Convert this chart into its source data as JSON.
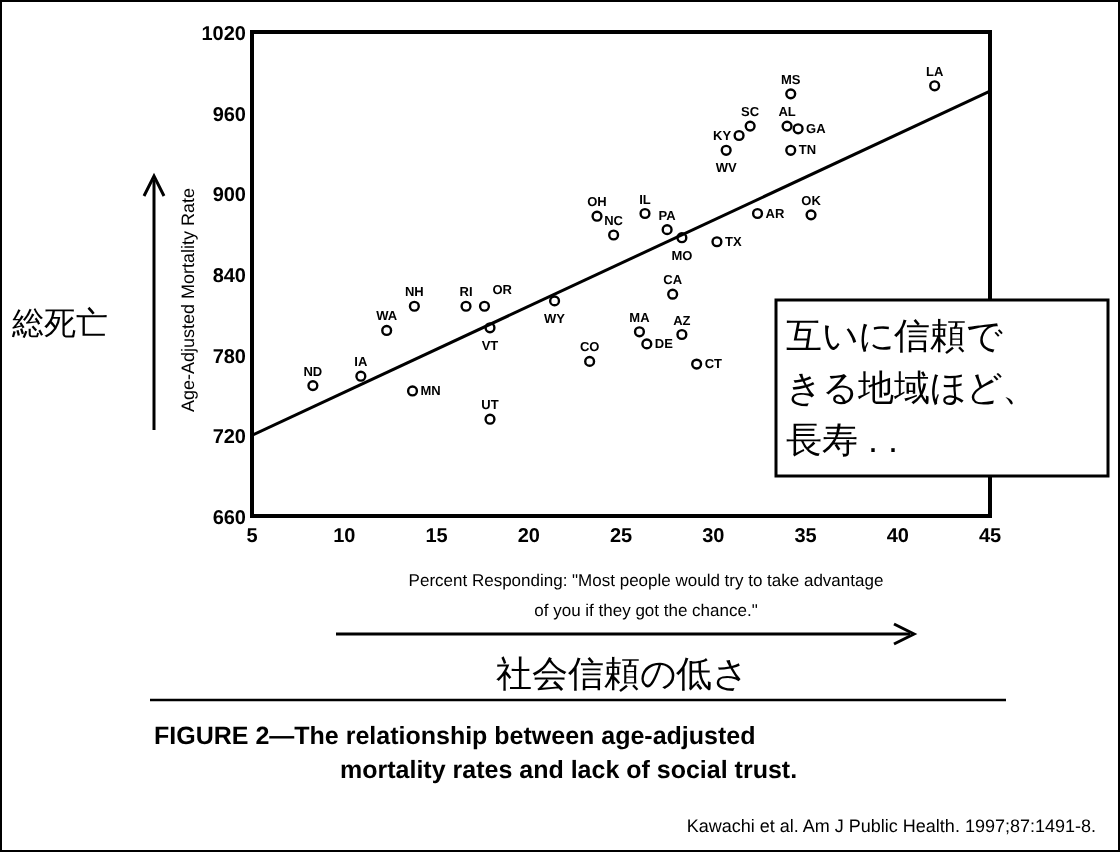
{
  "chart_data": {
    "type": "scatter",
    "title": "**FIGURE 2—The relationship between age-adjusted mortality rates and lack of social trust.**",
    "xlabel": "Percent Responding: \"Most people would try to take advantage of you if they got the chance.\"",
    "ylabel": "Age-Adjusted Mortality Rate",
    "xlim": [
      5,
      45
    ],
    "ylim": [
      660,
      1020
    ],
    "xticks": [
      5,
      10,
      15,
      20,
      25,
      30,
      35,
      40,
      45
    ],
    "yticks": [
      660,
      720,
      780,
      840,
      900,
      960,
      1020
    ],
    "grid": false,
    "marker": "circle",
    "series": [
      {
        "type": "scatter",
        "color": "#000000",
        "x": [
          8.3,
          10.9,
          12.3,
          13.8,
          13.7,
          16.6,
          17.6,
          17.9,
          21.4,
          17.9,
          23.3,
          23.7,
          24.6,
          26.3,
          27.5,
          28.3,
          30.2,
          27.8,
          26.4,
          26.0,
          28.3,
          29.1,
          31.4,
          32.0,
          30.7,
          34.2,
          34.0,
          34.6,
          34.2,
          32.4,
          35.3,
          42.0
        ],
        "values": [
          757,
          764,
          798,
          816,
          753,
          816,
          816,
          800,
          820,
          732,
          775,
          883,
          869,
          885,
          873,
          867,
          864,
          825,
          788,
          797,
          795,
          773,
          943,
          950,
          932,
          974,
          950,
          948,
          932,
          885,
          884,
          980
        ]
      },
      {
        "type": "line",
        "color": "#000000",
        "line_style": "solid",
        "marker": "none",
        "x": [
          5,
          45
        ],
        "values": [
          720,
          976
        ]
      }
    ],
    "annotations": [
      "総死亡",
      "社会信頼の低さ",
      "互いに信頼できる地域ほど、長寿 . .",
      "Kawachi et al. Am J Public Health. 1997;87:1491-8.",
      {
        "text": "ND",
        "x": 8.3,
        "y": 757
      },
      {
        "text": "IA",
        "x": 10.9,
        "y": 764
      },
      {
        "text": "WA",
        "x": 12.3,
        "y": 798
      },
      {
        "text": "NH",
        "x": 13.8,
        "y": 816
      },
      {
        "text": "MN",
        "x": 13.7,
        "y": 753
      },
      {
        "text": "RI",
        "x": 16.6,
        "y": 816
      },
      {
        "text": "OR",
        "x": 17.6,
        "y": 816
      },
      {
        "text": "VT",
        "x": 17.9,
        "y": 800
      },
      {
        "text": "WY",
        "x": 21.4,
        "y": 820
      },
      {
        "text": "UT",
        "x": 17.9,
        "y": 732
      },
      {
        "text": "CO",
        "x": 23.3,
        "y": 775
      },
      {
        "text": "OH",
        "x": 23.7,
        "y": 883
      },
      {
        "text": "NC",
        "x": 24.6,
        "y": 869
      },
      {
        "text": "IL",
        "x": 26.3,
        "y": 885
      },
      {
        "text": "PA",
        "x": 27.5,
        "y": 873
      },
      {
        "text": "MO",
        "x": 28.3,
        "y": 867
      },
      {
        "text": "TX",
        "x": 30.2,
        "y": 864
      },
      {
        "text": "CA",
        "x": 27.8,
        "y": 825
      },
      {
        "text": "DE",
        "x": 26.4,
        "y": 788
      },
      {
        "text": "MA",
        "x": 26.0,
        "y": 797
      },
      {
        "text": "AZ",
        "x": 28.3,
        "y": 795
      },
      {
        "text": "CT",
        "x": 29.1,
        "y": 773
      },
      {
        "text": "KY",
        "x": 31.4,
        "y": 943
      },
      {
        "text": "SC",
        "x": 32.0,
        "y": 950
      },
      {
        "text": "WV",
        "x": 30.7,
        "y": 932
      },
      {
        "text": "MS",
        "x": 34.2,
        "y": 974
      },
      {
        "text": "AL",
        "x": 34.0,
        "y": 950
      },
      {
        "text": "GA",
        "x": 34.6,
        "y": 948
      },
      {
        "text": "TN",
        "x": 34.2,
        "y": 932
      },
      {
        "text": "AR",
        "x": 32.4,
        "y": 885
      },
      {
        "text": "OK",
        "x": 35.3,
        "y": 884
      },
      {
        "text": "LA",
        "x": 42.0,
        "y": 980
      }
    ]
  }
}
